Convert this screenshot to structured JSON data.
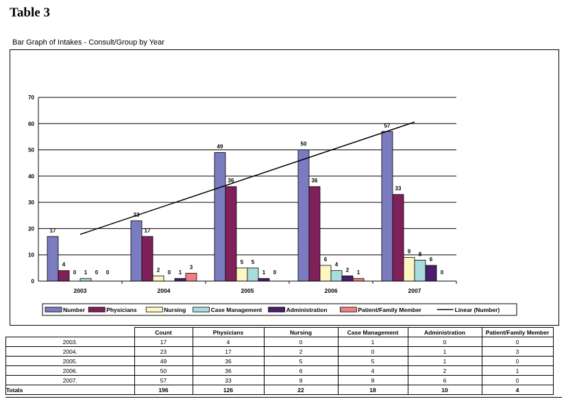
{
  "title": "Table 3",
  "subtitle": "Bar Graph of Intakes  - Consult/Group by Year",
  "chart_data": {
    "type": "bar",
    "title": "",
    "categories": [
      "2003",
      "2004",
      "2005",
      "2006",
      "2007"
    ],
    "ylim": [
      0,
      70
    ],
    "yticks": [
      0,
      10,
      20,
      30,
      40,
      50,
      60,
      70
    ],
    "grid": true,
    "legend_position": "bottom",
    "series": [
      {
        "name": "Number",
        "values": [
          17,
          23,
          49,
          50,
          57
        ],
        "color": "#7b7bc0"
      },
      {
        "name": "Physicians",
        "values": [
          4,
          17,
          36,
          36,
          33
        ],
        "color": "#80205a"
      },
      {
        "name": "Nursing",
        "values": [
          0,
          2,
          5,
          6,
          9
        ],
        "color": "#fdf6c0"
      },
      {
        "name": "Case Management",
        "values": [
          1,
          0,
          5,
          4,
          8
        ],
        "color": "#a8dcde"
      },
      {
        "name": "Administration",
        "values": [
          0,
          1,
          1,
          2,
          6
        ],
        "color": "#4a1d6e"
      },
      {
        "name": "Patient/Family Member",
        "values": [
          0,
          3,
          0,
          1,
          0
        ],
        "color": "#f08080"
      }
    ],
    "trendline": {
      "name": "Linear (Number)",
      "start": 17.8,
      "end": 60.6
    }
  },
  "table": {
    "headers": [
      "",
      "Count",
      "Physicians",
      "Nursing",
      "Case Management",
      "Administration",
      "Patient/Family Member"
    ],
    "rows": [
      [
        "2003.",
        "17",
        "4",
        "0",
        "1",
        "0",
        "0"
      ],
      [
        "2004.",
        "23",
        "17",
        "2",
        "0",
        "1",
        "3"
      ],
      [
        "2005.",
        "49",
        "36",
        "5",
        "5",
        "1",
        "0"
      ],
      [
        "2006.",
        "50",
        "36",
        "6",
        "4",
        "2",
        "1"
      ],
      [
        "2007.",
        "57",
        "33",
        "9",
        "8",
        "6",
        "0"
      ]
    ],
    "totals": [
      "Totals",
      "196",
      "126",
      "22",
      "18",
      "10",
      "4"
    ]
  }
}
